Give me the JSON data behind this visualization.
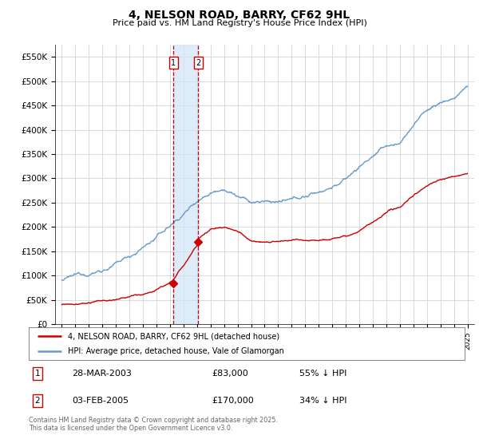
{
  "title": "4, NELSON ROAD, BARRY, CF62 9HL",
  "subtitle": "Price paid vs. HM Land Registry's House Price Index (HPI)",
  "ylim": [
    0,
    575000
  ],
  "xlim_start": 1994.5,
  "xlim_end": 2025.5,
  "red_line_label": "4, NELSON ROAD, BARRY, CF62 9HL (detached house)",
  "blue_line_label": "HPI: Average price, detached house, Vale of Glamorgan",
  "sale1_date": "28-MAR-2003",
  "sale1_price": "£83,000",
  "sale1_hpi": "55% ↓ HPI",
  "sale1_x": 2003.24,
  "sale1_y": 83000,
  "sale2_date": "03-FEB-2005",
  "sale2_price": "£170,000",
  "sale2_hpi": "34% ↓ HPI",
  "sale2_x": 2005.09,
  "sale2_y": 170000,
  "footer": "Contains HM Land Registry data © Crown copyright and database right 2025.\nThis data is licensed under the Open Government Licence v3.0.",
  "red_color": "#cc0000",
  "blue_color": "#6699cc",
  "blue_fill_color": "#d0e4f7",
  "marker_vline_color": "#cc0000",
  "background_color": "#ffffff",
  "grid_color": "#cccccc"
}
